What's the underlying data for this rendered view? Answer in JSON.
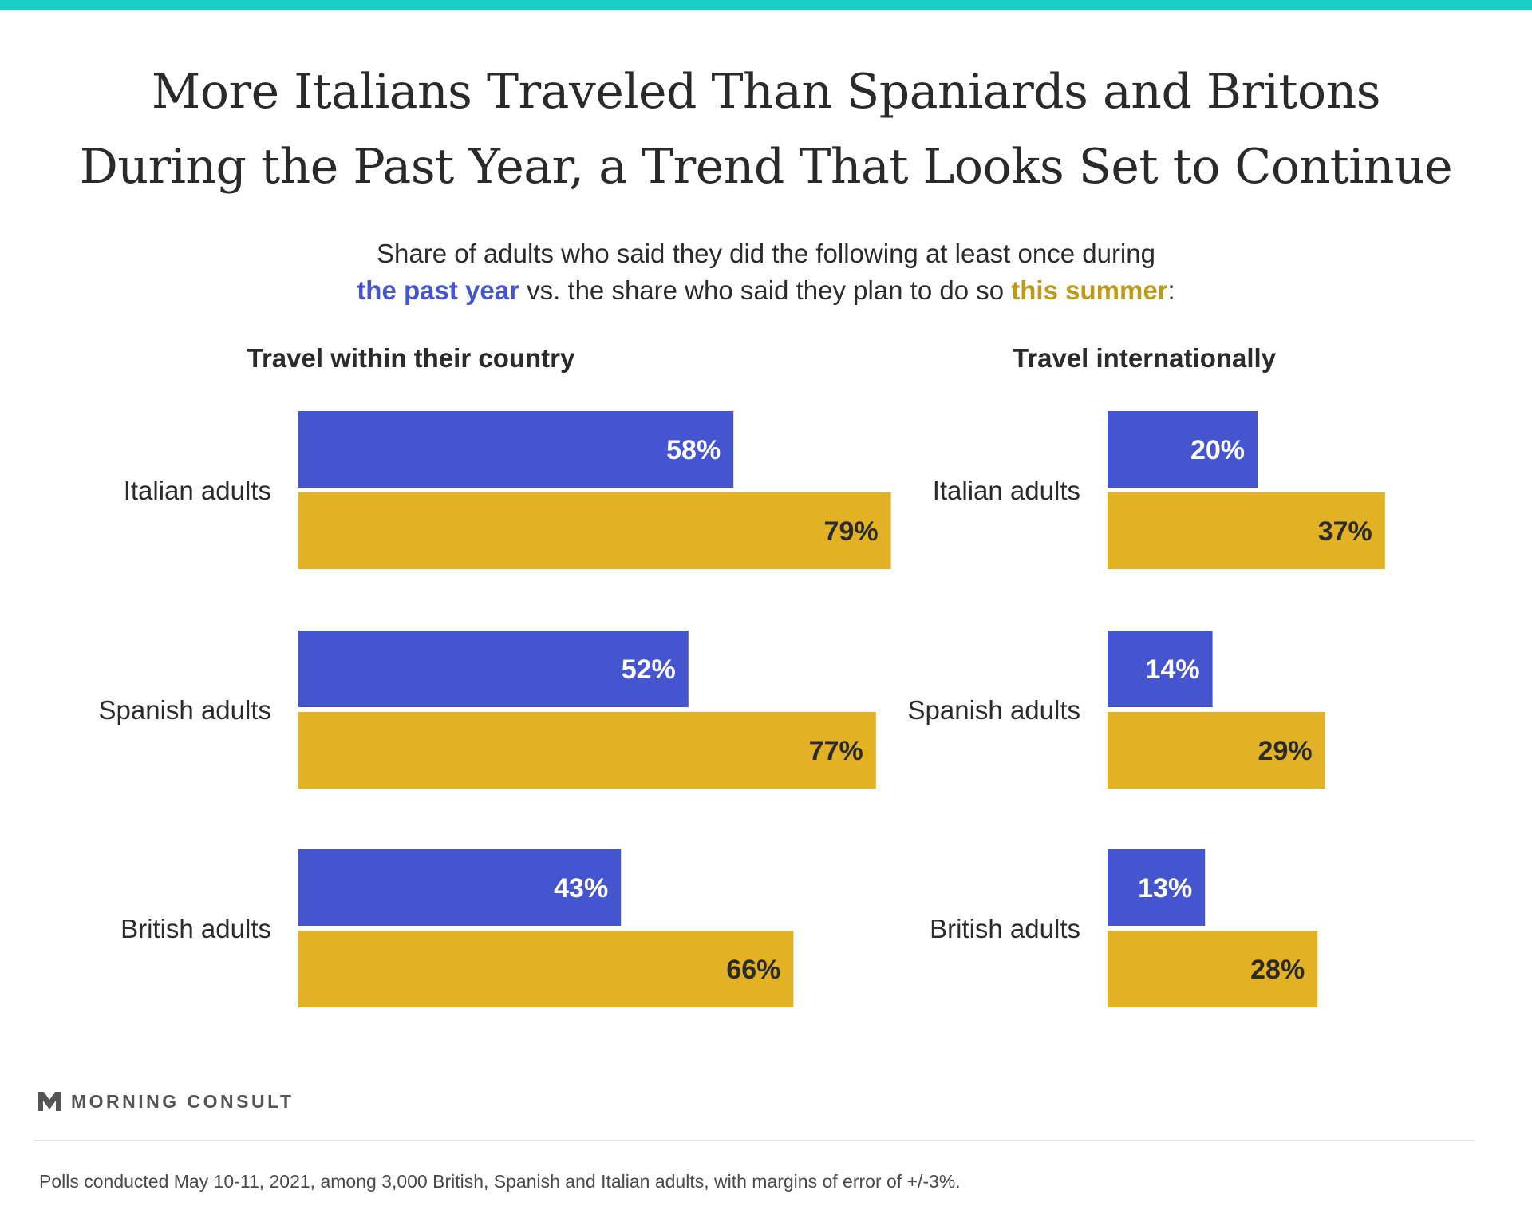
{
  "title_lines": [
    "More Italians Traveled Than Spaniards and Britons",
    "During the Past Year, a Trend That Looks Set to Continue"
  ],
  "subtitle": {
    "line1": "Share of adults who said they did the following at least once during",
    "line2_highlight_blue": "the past year",
    "line2_middle": " vs. the share who said they plan to do so ",
    "line2_highlight_gold": "this summer",
    "line2_end": ":"
  },
  "colors": {
    "past_year": "#4555d0",
    "this_summer": "#e2b124",
    "accent_bar": "#19cfc4",
    "label_on_blue": "#ffffff",
    "label_on_gold": "#2b2b2b"
  },
  "chart_data": [
    {
      "type": "bar",
      "title": "Travel within their country",
      "categories": [
        "Italian adults",
        "Spanish adults",
        "British adults"
      ],
      "series": [
        {
          "name": "the past year",
          "values": [
            58,
            52,
            43
          ]
        },
        {
          "name": "this summer",
          "values": [
            79,
            77,
            66
          ]
        }
      ],
      "value_suffix": "%",
      "xlim": [
        0,
        100
      ],
      "orientation": "horizontal",
      "grid": false
    },
    {
      "type": "bar",
      "title": "Travel internationally",
      "categories": [
        "Italian adults",
        "Spanish adults",
        "British adults"
      ],
      "series": [
        {
          "name": "the past year",
          "values": [
            20,
            14,
            13
          ]
        },
        {
          "name": "this summer",
          "values": [
            37,
            29,
            28
          ]
        }
      ],
      "value_suffix": "%",
      "xlim": [
        0,
        100
      ],
      "orientation": "horizontal",
      "grid": false
    }
  ],
  "logo": {
    "text": "MORNING CONSULT",
    "mark": "TM"
  },
  "footer_note": "Polls conducted May 10-11, 2021, among 3,000 British, Spanish and Italian adults, with margins of error of +/-3%."
}
